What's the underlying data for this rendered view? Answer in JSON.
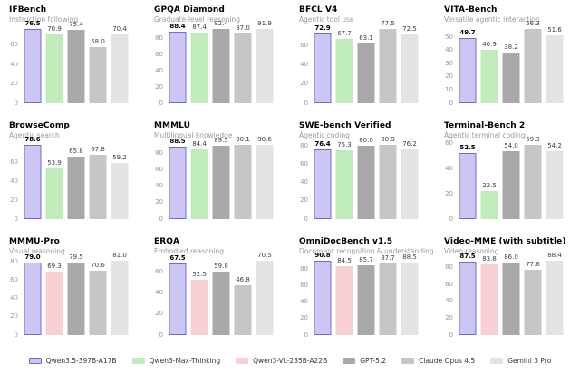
{
  "legend": {
    "entries": [
      {
        "label": "Qwen3.5-397B-A17B",
        "color": "#cbc7f2",
        "border": "#7268d8"
      },
      {
        "label": "Qwen3-Max-Thinking",
        "color": "#bfecba"
      },
      {
        "label": "Qwen3-VL-235B-A22B",
        "color": "#f8cfd3"
      },
      {
        "label": "GPT-5.2",
        "color": "#a8a8a8"
      },
      {
        "label": "Claude Opus 4.5",
        "color": "#c6c6c6"
      },
      {
        "label": "Gemini 3 Pro",
        "color": "#e3e3e3"
      }
    ]
  },
  "style": {
    "value_label_color": "#3d3d3d",
    "highlight_value_color": "#000000",
    "tick_label_color": "#999999",
    "subtitle_color": "#9a9a9a"
  },
  "chart_data": [
    {
      "type": "bar",
      "title": "IFBench",
      "subtitle": "Instruction following",
      "categories": [
        "Qwen3.5-397B-A17B",
        "Qwen3-Max-Thinking",
        "GPT-5.2",
        "Claude Opus 4.5",
        "Gemini 3 Pro"
      ],
      "values": [
        76.5,
        70.9,
        75.4,
        58.0,
        70.4
      ],
      "yticks": [
        0,
        20,
        40,
        60
      ],
      "ylim": [
        0,
        82
      ],
      "grid": false,
      "legend_position": "figure-bottom"
    },
    {
      "type": "bar",
      "title": "GPQA Diamond",
      "subtitle": "Graduate-level reasoning",
      "categories": [
        "Qwen3.5-397B-A17B",
        "Qwen3-Max-Thinking",
        "GPT-5.2",
        "Claude Opus 4.5",
        "Gemini 3 Pro"
      ],
      "values": [
        88.4,
        87.4,
        92.4,
        87.0,
        91.9
      ],
      "yticks": [
        0,
        20,
        40,
        60,
        80
      ],
      "ylim": [
        0,
        99
      ],
      "grid": false
    },
    {
      "type": "bar",
      "title": "BFCL V4",
      "subtitle": "Agentic tool use",
      "categories": [
        "Qwen3.5-397B-A17B",
        "Qwen3-Max-Thinking",
        "GPT-5.2",
        "Claude Opus 4.5",
        "Gemini 3 Pro"
      ],
      "values": [
        72.9,
        67.7,
        63.1,
        77.5,
        72.5
      ],
      "yticks": [
        0,
        20,
        40,
        60
      ],
      "ylim": [
        0,
        83.5
      ],
      "grid": false
    },
    {
      "type": "bar",
      "title": "VITA-Bench",
      "subtitle": "Versatile agentic interaction",
      "categories": [
        "Qwen3.5-397B-A17B",
        "Qwen3-Max-Thinking",
        "GPT-5.2",
        "Claude Opus 4.5",
        "Gemini 3 Pro"
      ],
      "values": [
        49.7,
        40.9,
        38.2,
        56.3,
        51.6
      ],
      "yticks": [
        0,
        10,
        20,
        30,
        40,
        50
      ],
      "ylim": [
        0,
        60.5
      ],
      "grid": false
    },
    {
      "type": "bar",
      "title": "BrowseComp",
      "subtitle": "Agentic search",
      "categories": [
        "Qwen3.5-397B-A17B",
        "Qwen3-Max-Thinking",
        "GPT-5.2",
        "Claude Opus 4.5",
        "Gemini 3 Pro"
      ],
      "values": [
        78.6,
        53.9,
        65.8,
        67.8,
        59.2
      ],
      "yticks": [
        0,
        20,
        40,
        60
      ],
      "ylim": [
        0,
        84.5
      ],
      "grid": false
    },
    {
      "type": "bar",
      "title": "MMMLU",
      "subtitle": "Multilingual knowledge",
      "categories": [
        "Qwen3.5-397B-A17B",
        "Qwen3-Max-Thinking",
        "GPT-5.2",
        "Claude Opus 4.5",
        "Gemini 3 Pro"
      ],
      "values": [
        88.5,
        84.4,
        89.5,
        90.1,
        90.6
      ],
      "yticks": [
        0,
        20,
        40,
        60,
        80
      ],
      "ylim": [
        0,
        97
      ],
      "grid": false
    },
    {
      "type": "bar",
      "title": "SWE-bench Verified",
      "subtitle": "Agentic coding",
      "categories": [
        "Qwen3.5-397B-A17B",
        "Qwen3-Max-Thinking",
        "GPT-5.2",
        "Claude Opus 4.5",
        "Gemini 3 Pro"
      ],
      "values": [
        76.4,
        75.3,
        80.0,
        80.9,
        76.2
      ],
      "yticks": [
        0,
        20,
        40,
        60,
        80
      ],
      "ylim": [
        0,
        87
      ],
      "grid": false
    },
    {
      "type": "bar",
      "title": "Terminal-Bench 2",
      "subtitle": "Agentic terminal coding",
      "categories": [
        "Qwen3.5-397B-A17B",
        "Qwen3-Max-Thinking",
        "GPT-5.2",
        "Claude Opus 4.5",
        "Gemini 3 Pro"
      ],
      "values": [
        52.5,
        22.5,
        54.0,
        59.3,
        54.2
      ],
      "yticks": [
        0,
        20,
        40,
        60
      ],
      "ylim": [
        0,
        63.5
      ],
      "grid": false
    },
    {
      "type": "bar",
      "title": "MMMU-Pro",
      "subtitle": "Visual reasoning",
      "categories": [
        "Qwen3.5-397B-A17B",
        "Qwen3-VL-235B-A22B",
        "GPT-5.2",
        "Claude Opus 4.5",
        "Gemini 3 Pro"
      ],
      "values": [
        79.0,
        69.3,
        79.5,
        70.6,
        81.0
      ],
      "yticks": [
        0,
        20,
        40,
        60,
        80
      ],
      "ylim": [
        0,
        87
      ],
      "grid": false
    },
    {
      "type": "bar",
      "title": "ERQA",
      "subtitle": "Embodied reasoning",
      "categories": [
        "Qwen3.5-397B-A17B",
        "Qwen3-VL-235B-A22B",
        "GPT-5.2",
        "Claude Opus 4.5",
        "Gemini 3 Pro"
      ],
      "values": [
        67.5,
        52.5,
        59.8,
        46.8,
        70.5
      ],
      "yticks": [
        0,
        20,
        40,
        60
      ],
      "ylim": [
        0,
        75.5
      ],
      "grid": false
    },
    {
      "type": "bar",
      "title": "OmniDocBench v1.5",
      "subtitle": "Document recognition & understanding",
      "categories": [
        "Qwen3.5-397B-A17B",
        "Qwen3-VL-235B-A22B",
        "GPT-5.2",
        "Claude Opus 4.5",
        "Gemini 3 Pro"
      ],
      "values": [
        90.8,
        84.5,
        85.7,
        87.7,
        88.5
      ],
      "yticks": [
        0,
        20,
        40,
        60,
        80
      ],
      "ylim": [
        0,
        97.5
      ],
      "grid": false
    },
    {
      "type": "bar",
      "title": "Video-MME (with subtitle)",
      "subtitle": "Video reasoning",
      "categories": [
        "Qwen3.5-397B-A17B",
        "Qwen3-VL-235B-A22B",
        "GPT-5.2",
        "Claude Opus 4.5",
        "Gemini 3 Pro"
      ],
      "values": [
        87.5,
        83.8,
        86.0,
        77.6,
        88.4
      ],
      "yticks": [
        0,
        20,
        40,
        60,
        80
      ],
      "ylim": [
        0,
        94.5
      ],
      "grid": false
    }
  ]
}
